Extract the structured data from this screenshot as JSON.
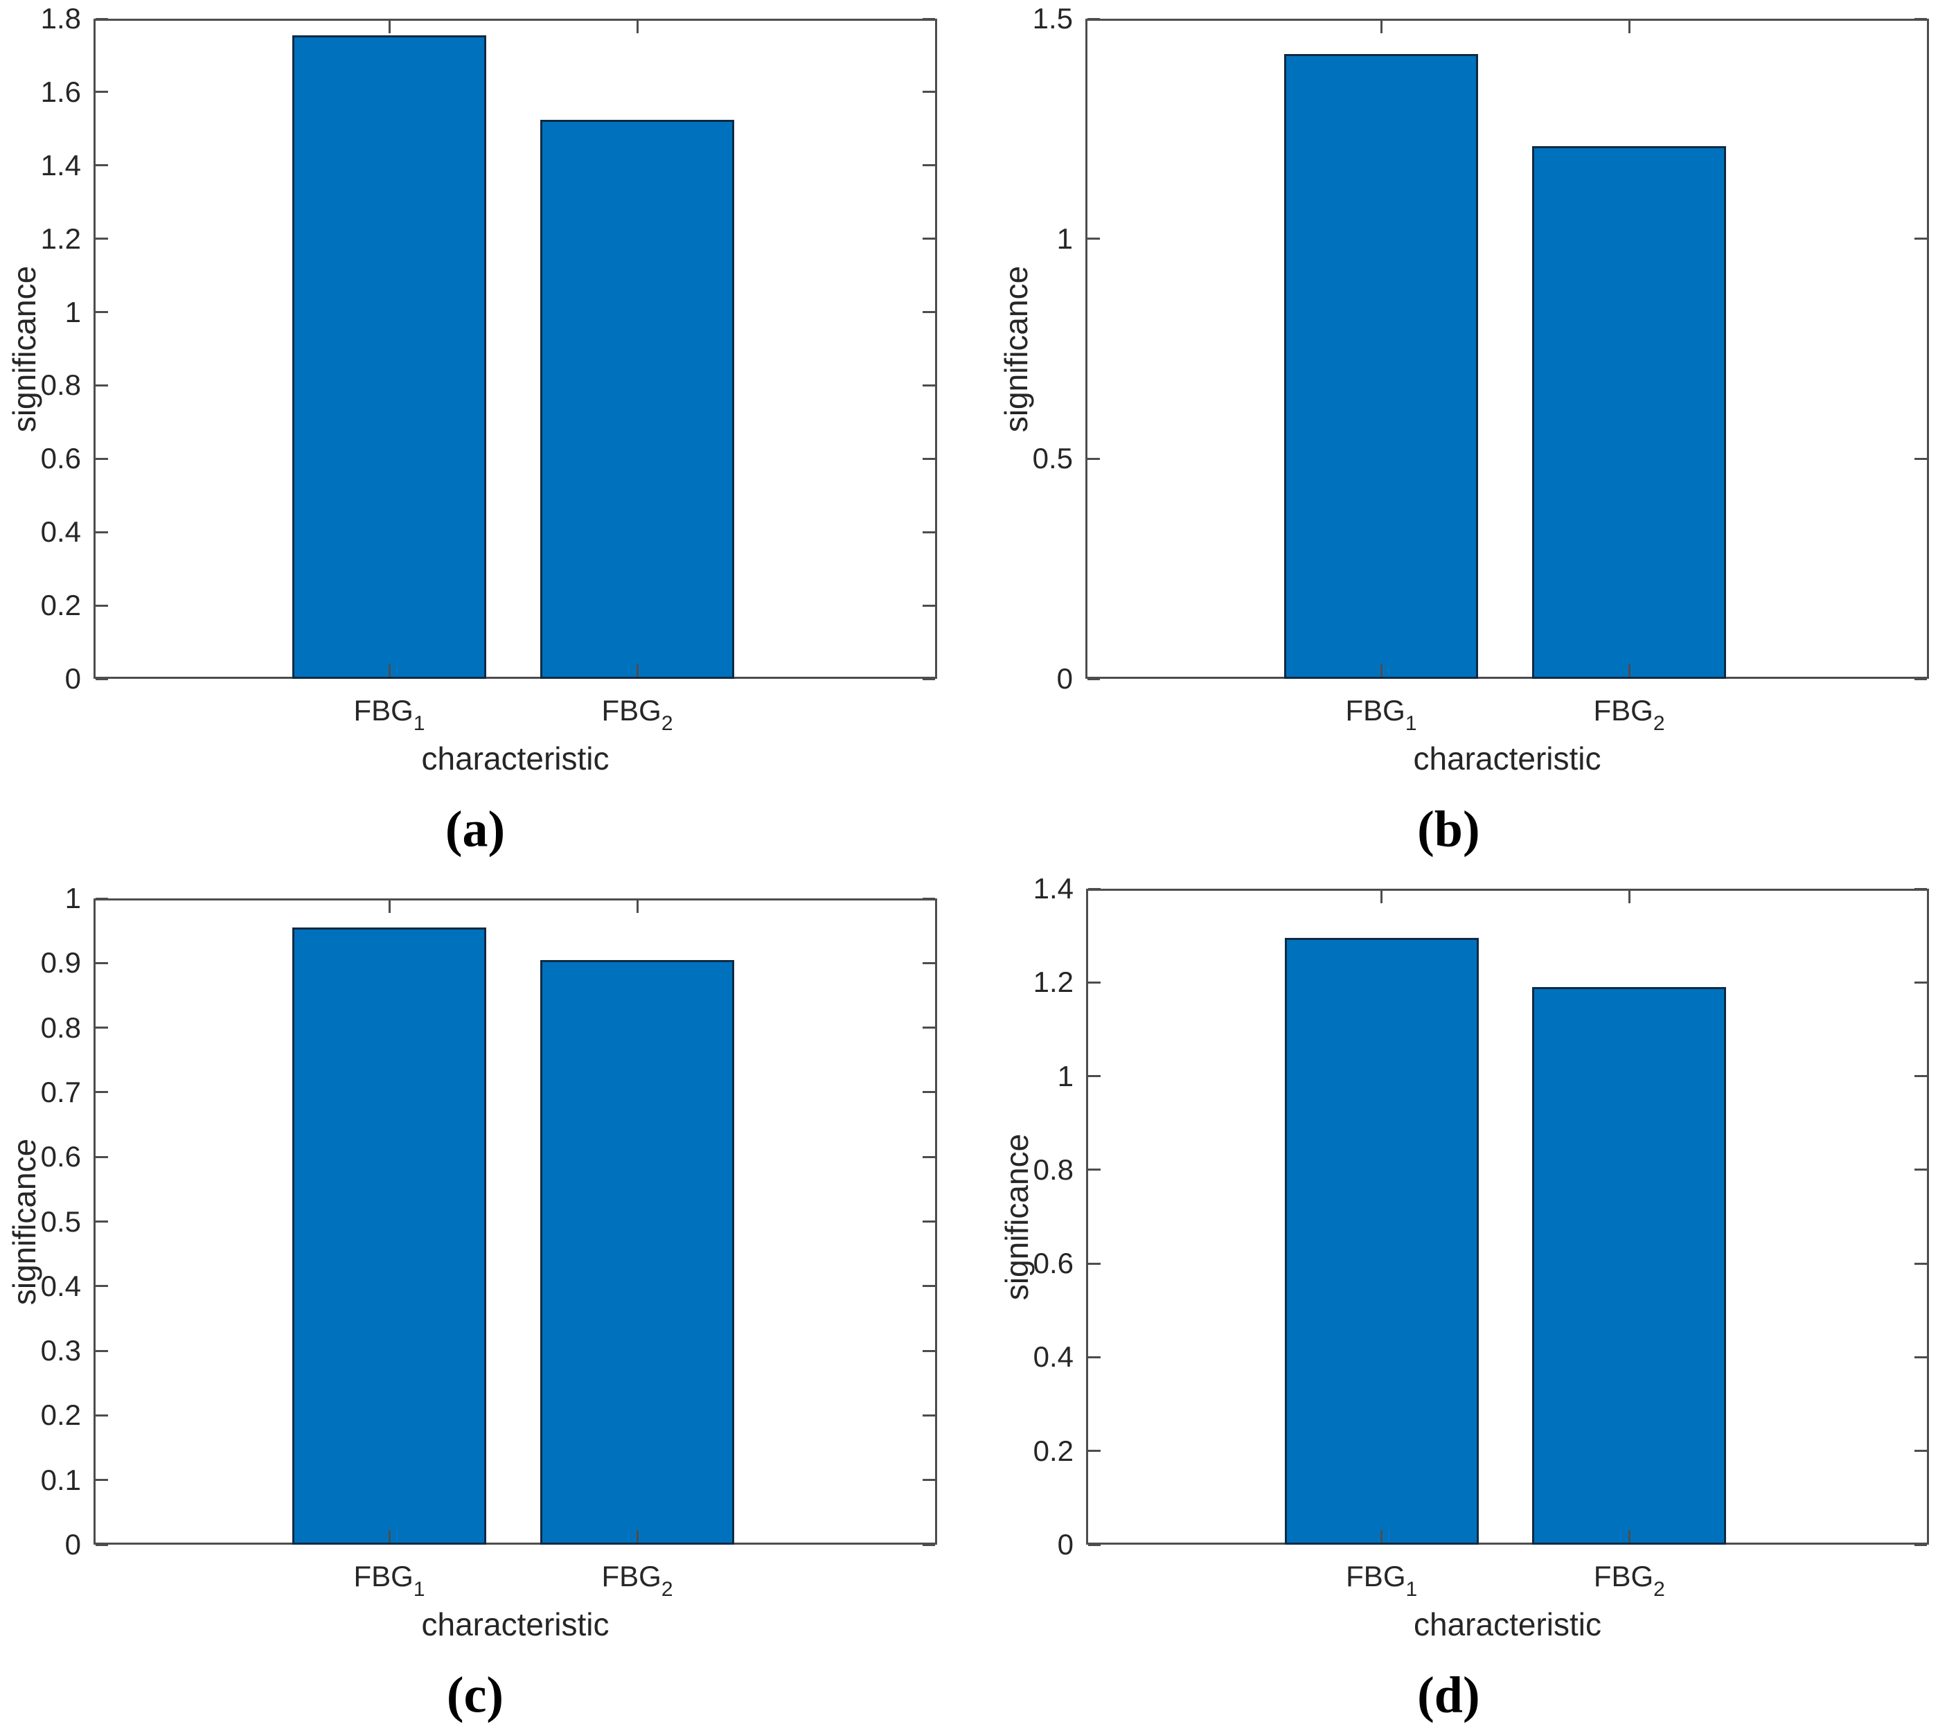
{
  "figure": {
    "background": "#ffffff",
    "bar_fill": "#0072BD",
    "bar_edge": "#0f2a43",
    "axis_color": "#4d4d4d",
    "text_color": "#262626"
  },
  "chart_data": [
    {
      "panel": "a",
      "type": "bar",
      "categories": [
        {
          "base": "FBG",
          "sub": "1"
        },
        {
          "base": "FBG",
          "sub": "2"
        }
      ],
      "values": [
        1.755,
        1.525
      ],
      "xlabel": "characteristic",
      "ylabel": "significance",
      "ylim": [
        0,
        1.8
      ],
      "ytick_labels": [
        "0",
        "0.2",
        "0.4",
        "0.6",
        "0.8",
        "1",
        "1.2",
        "1.4",
        "1.6",
        "1.8"
      ],
      "caption": "(a)",
      "grid": false,
      "legend": "none"
    },
    {
      "panel": "b",
      "type": "bar",
      "categories": [
        {
          "base": "FBG",
          "sub": "1"
        },
        {
          "base": "FBG",
          "sub": "2"
        }
      ],
      "values": [
        1.42,
        1.21
      ],
      "xlabel": "characteristic",
      "ylabel": "significance",
      "ylim": [
        0,
        1.5
      ],
      "ytick_labels": [
        "0",
        "0.5",
        "1",
        "1.5"
      ],
      "caption": "(b)",
      "grid": false,
      "legend": "none"
    },
    {
      "panel": "c",
      "type": "bar",
      "categories": [
        {
          "base": "FBG",
          "sub": "1"
        },
        {
          "base": "FBG",
          "sub": "2"
        }
      ],
      "values": [
        0.955,
        0.905
      ],
      "xlabel": "characteristic",
      "ylabel": "significance",
      "ylim": [
        0,
        1
      ],
      "ytick_labels": [
        "0",
        "0.1",
        "0.2",
        "0.3",
        "0.4",
        "0.5",
        "0.6",
        "0.7",
        "0.8",
        "0.9",
        "1"
      ],
      "caption": "(c)",
      "grid": false,
      "legend": "none"
    },
    {
      "panel": "d",
      "type": "bar",
      "categories": [
        {
          "base": "FBG",
          "sub": "1"
        },
        {
          "base": "FBG",
          "sub": "2"
        }
      ],
      "values": [
        1.295,
        1.19
      ],
      "xlabel": "characteristic",
      "ylabel": "significance",
      "ylim": [
        0,
        1.4
      ],
      "ytick_labels": [
        "0",
        "0.2",
        "0.4",
        "0.6",
        "0.8",
        "1",
        "1.2",
        "1.4"
      ],
      "caption": "(d)",
      "grid": false,
      "legend": "none"
    }
  ]
}
